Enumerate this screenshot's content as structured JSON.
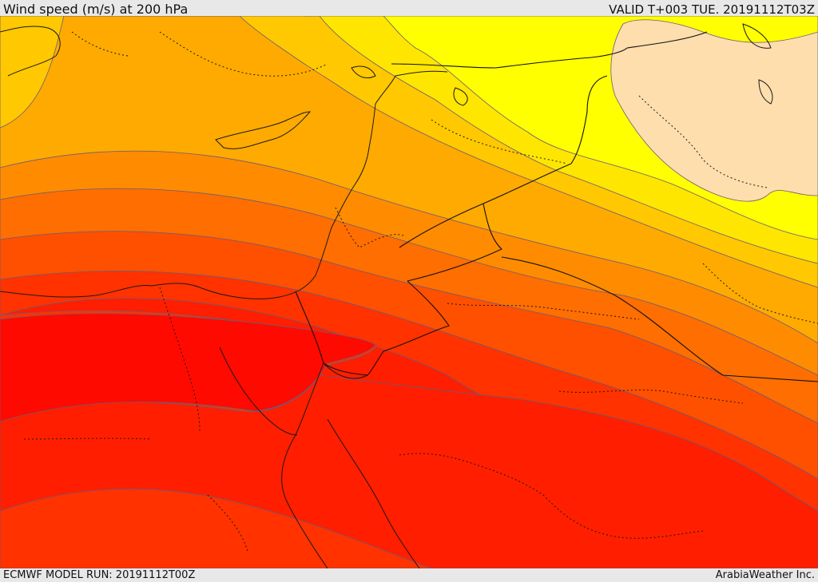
{
  "header": {
    "title": "Wind speed (m/s) at 200 hPa",
    "valid": "VALID T+003 TUE. 20191112T03Z"
  },
  "footer": {
    "model_run": "ECMWF MODEL RUN: 20191112T00Z",
    "credit": "ArabiaWeather Inc."
  },
  "palette": {
    "level_1": "#ffdead",
    "level_2": "#ffff00",
    "level_3": "#ffe600",
    "level_4": "#ffc800",
    "level_5": "#ffaa00",
    "level_6": "#ff8c00",
    "level_7": "#ff6e00",
    "level_8": "#ff5000",
    "level_9": "#ff3200",
    "level_10": "#ff1e00",
    "level_11": "#ff0a00"
  }
}
